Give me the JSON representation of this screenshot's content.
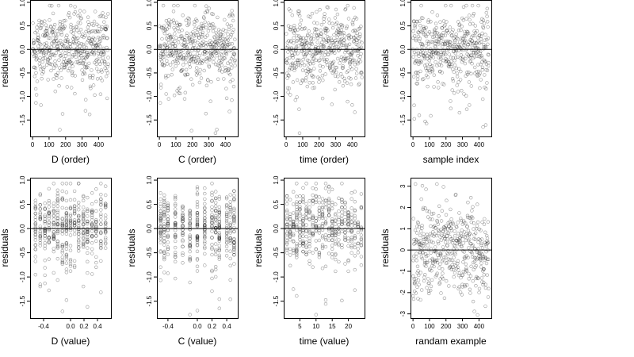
{
  "chart_data": [
    {
      "type": "scatter",
      "xlabel": "D (order)",
      "ylabel": "residuals",
      "xlim": [
        -15,
        475
      ],
      "ylim": [
        -1.85,
        1.05
      ],
      "xticks": [
        0,
        100,
        200,
        300,
        400
      ],
      "xtick_labels": [
        "0",
        "100",
        "200",
        "300",
        "400"
      ],
      "yticks": [
        1.0,
        0.5,
        0.0,
        -0.5,
        -1.0,
        -1.5
      ],
      "ytick_labels": [
        "1.0",
        "0.5",
        "0.0",
        "-0.5",
        "-1.0",
        "-1.5"
      ],
      "hline": 0,
      "x_kind": "index",
      "n_points": 460,
      "x": [],
      "y": []
    },
    {
      "type": "scatter",
      "xlabel": "C (order)",
      "ylabel": "residuals",
      "xlim": [
        -15,
        475
      ],
      "ylim": [
        -1.85,
        1.05
      ],
      "xticks": [
        0,
        100,
        200,
        300,
        400
      ],
      "xtick_labels": [
        "0",
        "100",
        "200",
        "300",
        "400"
      ],
      "yticks": [
        1.0,
        0.5,
        0.0,
        -0.5,
        -1.0,
        -1.5
      ],
      "ytick_labels": [
        "1.0",
        "0.5",
        "0.0",
        "-0.5",
        "-1.0",
        "-1.5"
      ],
      "hline": 0,
      "x_kind": "index",
      "n_points": 460,
      "x": [],
      "y": []
    },
    {
      "type": "scatter",
      "xlabel": "time (order)",
      "ylabel": "residuals",
      "xlim": [
        -15,
        475
      ],
      "ylim": [
        -1.85,
        1.05
      ],
      "xticks": [
        0,
        100,
        200,
        300,
        400
      ],
      "xtick_labels": [
        "0",
        "100",
        "200",
        "300",
        "400"
      ],
      "yticks": [
        1.0,
        0.5,
        0.0,
        -0.5,
        -1.0,
        -1.5
      ],
      "ytick_labels": [
        "1.0",
        "0.5",
        "0.0",
        "-0.5",
        "-1.0",
        "-1.5"
      ],
      "hline": 0,
      "x_kind": "index",
      "n_points": 460,
      "x": [],
      "y": []
    },
    {
      "type": "scatter",
      "xlabel": "sample index",
      "ylabel": "residuals",
      "xlim": [
        -15,
        475
      ],
      "ylim": [
        -1.85,
        1.05
      ],
      "xticks": [
        0,
        100,
        200,
        300,
        400
      ],
      "xtick_labels": [
        "0",
        "100",
        "200",
        "300",
        "400"
      ],
      "yticks": [
        1.0,
        0.5,
        0.0,
        -0.5,
        -1.0,
        -1.5
      ],
      "ytick_labels": [
        "1.0",
        "0.5",
        "0.0",
        "-0.5",
        "-1.0",
        "-1.5"
      ],
      "hline": 0,
      "x_kind": "index",
      "n_points": 460,
      "x": [],
      "y": []
    },
    {
      "type": "scatter",
      "xlabel": "D (value)",
      "ylabel": "residuals",
      "xlim": [
        -0.6,
        0.6
      ],
      "ylim": [
        -1.85,
        1.05
      ],
      "xticks": [
        -0.4,
        0.0,
        0.2,
        0.4
      ],
      "xtick_labels": [
        "-0.4",
        "0.0",
        "0.2",
        "0.4"
      ],
      "yticks": [
        1.0,
        0.5,
        0.0,
        -0.5,
        -1.0,
        -1.5
      ],
      "ytick_labels": [
        "1.0",
        "0.5",
        "0.0",
        "-0.5",
        "-1.0",
        "-1.5"
      ],
      "hline": 0,
      "x_kind": "discrete",
      "x_levels": [
        -0.52,
        -0.45,
        -0.38,
        -0.32,
        -0.25,
        -0.19,
        -0.12,
        -0.06,
        0.0,
        0.06,
        0.12,
        0.19,
        0.25,
        0.32,
        0.38,
        0.45,
        0.52
      ],
      "n_points": 460,
      "x": [],
      "y": []
    },
    {
      "type": "scatter",
      "xlabel": "C (value)",
      "ylabel": "residuals",
      "xlim": [
        -0.55,
        0.55
      ],
      "ylim": [
        -1.85,
        1.05
      ],
      "xticks": [
        -0.4,
        0.0,
        0.2,
        0.4
      ],
      "xtick_labels": [
        "-0.4",
        "0.0",
        "0.2",
        "0.4"
      ],
      "yticks": [
        1.0,
        0.5,
        0.0,
        -0.5,
        -1.0,
        -1.5
      ],
      "ytick_labels": [
        "1.0",
        "0.5",
        "0.0",
        "-0.5",
        "-1.0",
        "-1.5"
      ],
      "hline": 0,
      "x_kind": "discrete",
      "x_levels": [
        -0.5,
        -0.45,
        -0.4,
        -0.3,
        -0.2,
        -0.1,
        0.0,
        0.1,
        0.2,
        0.25,
        0.3,
        0.4,
        0.45,
        0.5
      ],
      "n_points": 460,
      "x": [],
      "y": []
    },
    {
      "type": "scatter",
      "xlabel": "time (value)",
      "ylabel": "residuals",
      "xlim": [
        0,
        25
      ],
      "ylim": [
        -1.85,
        1.05
      ],
      "xticks": [
        5,
        10,
        15,
        20
      ],
      "xtick_labels": [
        "5",
        "10",
        "15",
        "20"
      ],
      "yticks": [
        1.0,
        0.5,
        0.0,
        -0.5,
        -1.0,
        -1.5
      ],
      "ytick_labels": [
        "1.0",
        "0.5",
        "0.0",
        "-0.5",
        "-1.0",
        "-1.5"
      ],
      "hline": 0,
      "x_kind": "discrete",
      "x_levels": [
        1,
        2,
        3,
        4,
        5,
        6,
        7,
        8,
        9,
        10,
        11,
        12,
        13,
        14,
        15,
        16,
        17,
        18,
        19,
        20,
        21,
        22,
        23,
        24
      ],
      "n_points": 460,
      "x": [],
      "y": []
    },
    {
      "type": "scatter",
      "xlabel": "randam example",
      "ylabel": "residuals",
      "xlim": [
        -15,
        475
      ],
      "ylim": [
        -3.2,
        3.4
      ],
      "xticks": [
        0,
        100,
        200,
        300,
        400
      ],
      "xtick_labels": [
        "0",
        "100",
        "200",
        "300",
        "400"
      ],
      "yticks": [
        3,
        2,
        1,
        0,
        -1,
        -2,
        -3
      ],
      "ytick_labels": [
        "3",
        "2",
        "1",
        "0",
        "-1",
        "-2",
        "-3"
      ],
      "hline": 0,
      "x_kind": "index",
      "n_points": 460,
      "x": [],
      "y": []
    }
  ]
}
